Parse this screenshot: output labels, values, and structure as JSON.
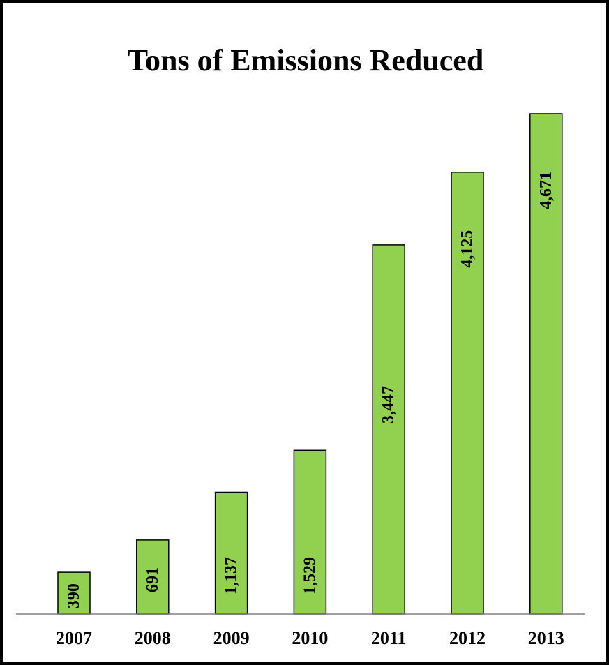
{
  "chart_data": {
    "type": "bar",
    "title": "Tons of Emissions Reduced",
    "categories": [
      "2007",
      "2008",
      "2009",
      "2010",
      "2011",
      "2012",
      "2013"
    ],
    "values": [
      390,
      691,
      1137,
      1529,
      3447,
      4125,
      4671
    ],
    "data_labels": [
      "390",
      "691",
      "1,137",
      "1,529",
      "3,447",
      "4,125",
      "4,671"
    ],
    "xlabel": "",
    "ylabel": "",
    "ylim": [
      0,
      4671
    ],
    "grid": false,
    "legend": "none",
    "bar_color": "#92d050",
    "bar_outline": "#000000"
  }
}
